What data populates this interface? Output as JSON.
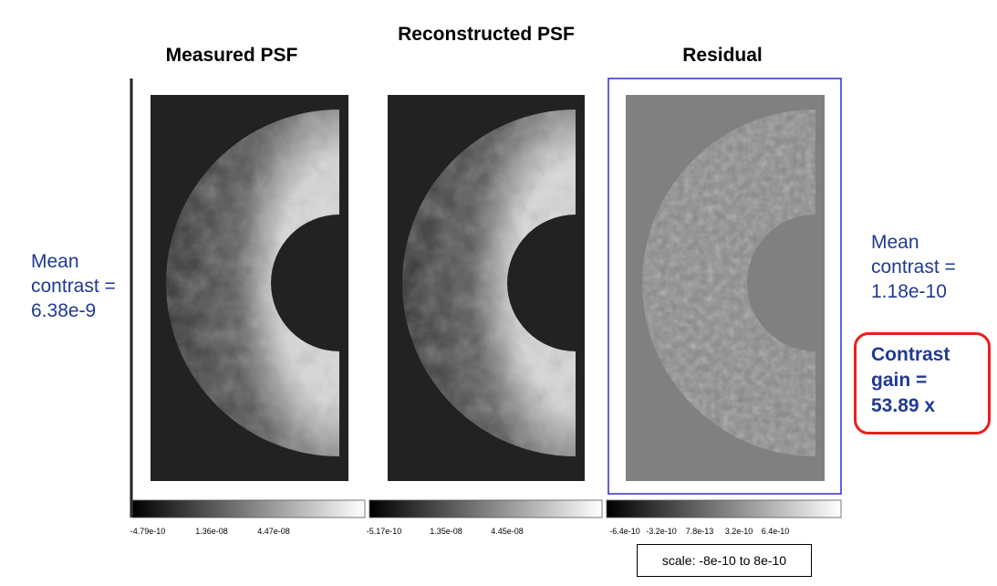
{
  "panels": [
    {
      "title": "Measured PSF",
      "colorbar_ticks": [
        "-4.79e-10",
        "1.36e-08",
        "4.47e-08"
      ]
    },
    {
      "title": "Reconstructed PSF",
      "colorbar_ticks": [
        "-5.17e-10",
        "1.35e-08",
        "4.45e-08"
      ]
    },
    {
      "title": "Residual",
      "colorbar_ticks": [
        "-6.4e-10",
        "-3.2e-10",
        "7.8e-13",
        "3.2e-10",
        "6.4e-10"
      ]
    }
  ],
  "scale_note": "scale: -8e-10 to 8e-10",
  "left_note": {
    "lines": [
      "Mean",
      "contrast =",
      "6.38e-9"
    ]
  },
  "right_note": {
    "lines": [
      "Mean",
      "contrast =",
      "1.18e-10"
    ]
  },
  "gain_note": {
    "lines": [
      "Contrast",
      "gain =",
      "53.89 x"
    ]
  }
}
